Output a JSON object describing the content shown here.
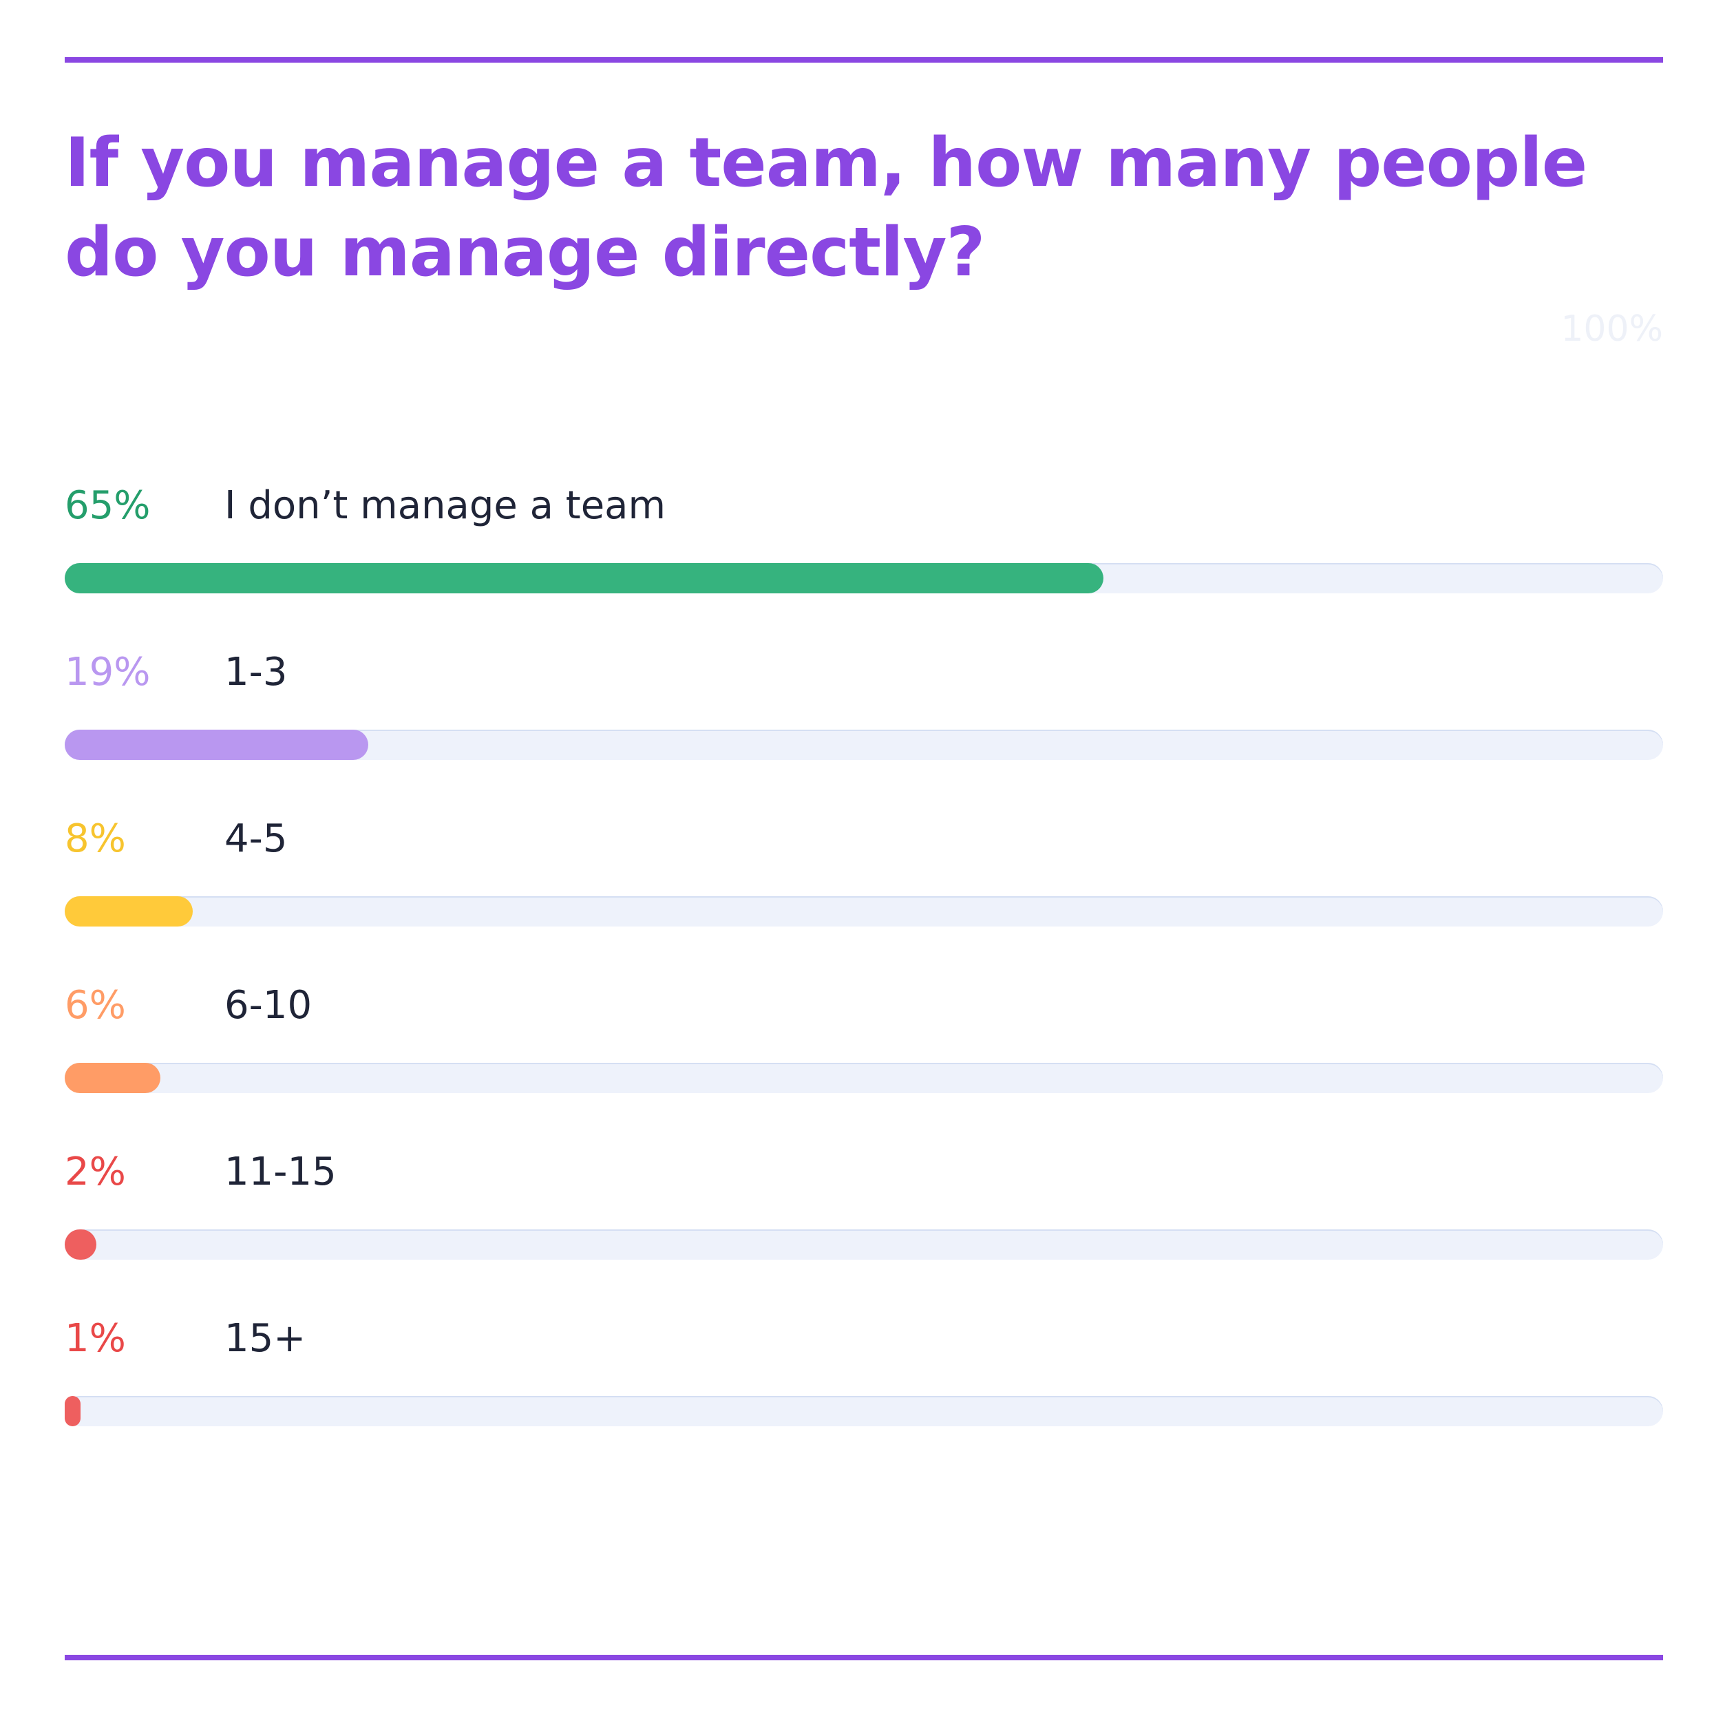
{
  "chart_data": {
    "type": "bar",
    "orientation": "horizontal",
    "title": "If you manage a team, how many people do you manage directly?",
    "scale_max_label": "100%",
    "xlim": [
      0,
      100
    ],
    "unit": "%",
    "categories": [
      "I don’t manage a team",
      "1-3",
      "4-5",
      "6-10",
      "11-15",
      "15+"
    ],
    "values": [
      65,
      19,
      8,
      6,
      2,
      1
    ],
    "value_labels": [
      "65%",
      "19%",
      "8%",
      "6%",
      "2%",
      "1%"
    ],
    "colors": [
      "#36b37e",
      "#b997f0",
      "#ffca3a",
      "#ff9c66",
      "#ee5f5f",
      "#ee5f5f"
    ],
    "label_colors": [
      "#249e6b",
      "#b997f0",
      "#f7c42e",
      "#ff9c66",
      "#e94848",
      "#e94848"
    ],
    "track_color": "#eef2fb",
    "accent": "#8a47e2"
  }
}
